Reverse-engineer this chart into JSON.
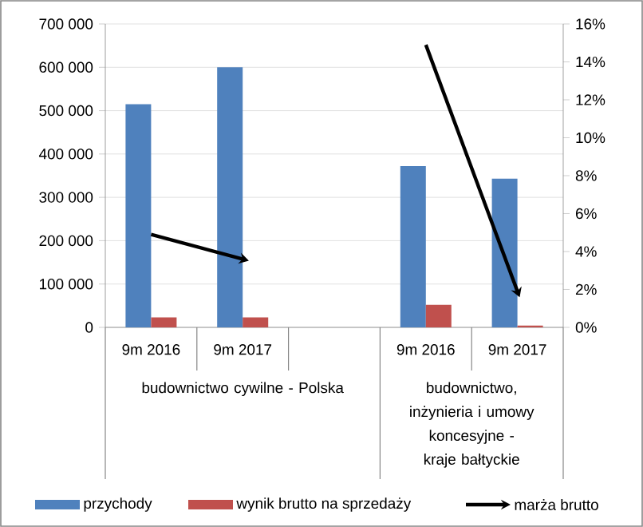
{
  "chart_data": {
    "type": "bar",
    "categories": [
      "9m 2016",
      "9m 2017",
      null,
      "9m 2016",
      "9m 2017"
    ],
    "annotations": [
      "budownictwo cywilne - Polska",
      "budownictwo, inżynieria i umowy koncesyjne - kraje bałtyckie"
    ],
    "series": [
      {
        "name": "przychody",
        "color": "#4f81bd",
        "values": [
          515000,
          600000,
          null,
          372000,
          343000
        ]
      },
      {
        "name": "wynik brutto na sprzedaży",
        "color": "#c0504d",
        "values": [
          23000,
          23000,
          null,
          52000,
          4000
        ]
      },
      {
        "name": "marża brutto",
        "type": "line",
        "axis": "y2",
        "color": "#000000",
        "values": [
          4.9,
          3.6,
          null,
          14.9,
          1.9
        ]
      }
    ],
    "ylim": [
      0,
      700000
    ],
    "yticks": [
      0,
      {
        "value": 100000,
        "label": "100 000"
      },
      {
        "value": 200000,
        "label": "200 000"
      },
      {
        "value": 300000,
        "label": "300 000"
      },
      {
        "value": 400000,
        "label": "400 000"
      },
      {
        "value": 500000,
        "label": "500 000"
      },
      {
        "value": 600000,
        "label": "600 000"
      },
      {
        "value": 700000,
        "label": "700 000"
      }
    ],
    "y2lim": [
      0,
      16
    ],
    "y2ticks": [
      {
        "value": 0,
        "label": "0%"
      },
      {
        "value": 2,
        "label": "2%"
      },
      {
        "value": 4,
        "label": "4%"
      },
      {
        "value": 6,
        "label": "6%"
      },
      {
        "value": 8,
        "label": "8%"
      },
      {
        "value": 10,
        "label": "10%"
      },
      {
        "value": 12,
        "label": "12%"
      },
      {
        "value": 14,
        "label": "14%"
      },
      {
        "value": 16,
        "label": "16%"
      }
    ],
    "grid": "y",
    "legend": "bottom"
  }
}
